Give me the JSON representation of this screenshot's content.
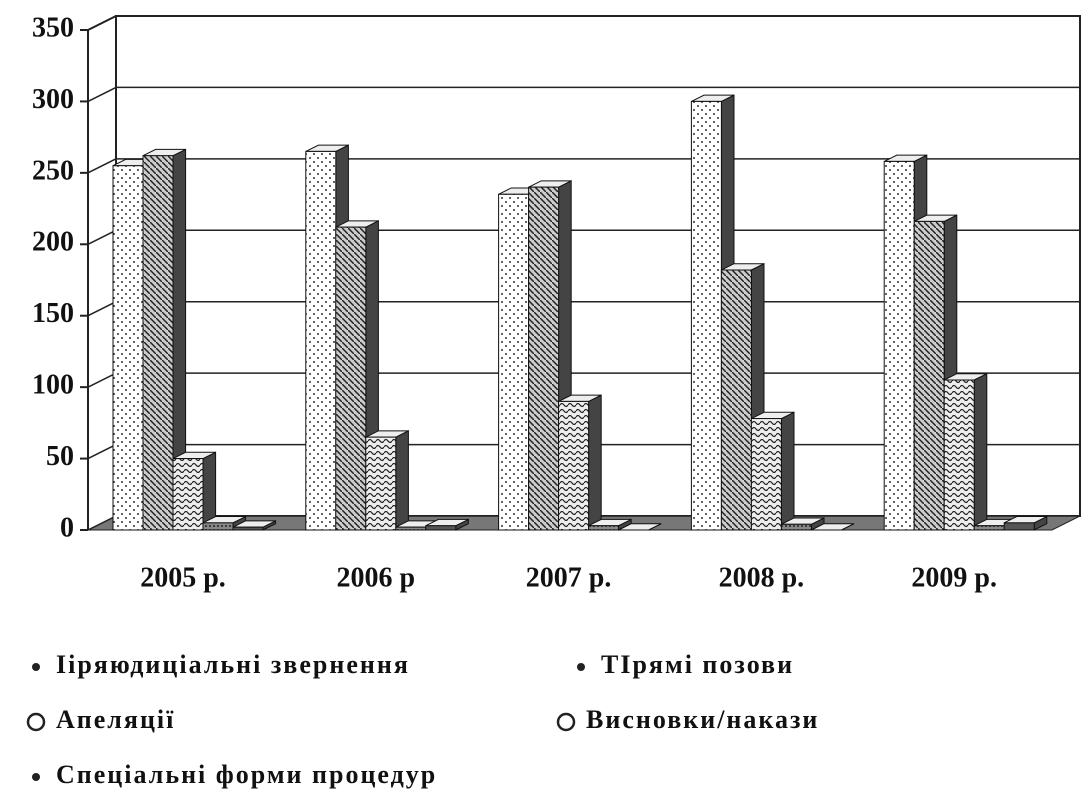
{
  "chart_data": {
    "type": "bar3d",
    "categories": [
      "2005 р.",
      "2006 р",
      "2007 р.",
      "2008 р.",
      "2009 р."
    ],
    "series": [
      {
        "name": "Іiряюдиціальні звернення",
        "color": "#ffffff",
        "values": [
          255,
          265,
          235,
          300,
          258
        ]
      },
      {
        "name": "ТIрямі позови",
        "color": "#bbbbbb",
        "values": [
          262,
          212,
          240,
          182,
          216
        ]
      },
      {
        "name": "Апеляції",
        "color": "#dddddd",
        "values": [
          50,
          65,
          90,
          78,
          105
        ]
      },
      {
        "name": "Висновки/накази",
        "color": "#888888",
        "values": [
          5,
          2,
          3,
          4,
          3
        ]
      },
      {
        "name": "Спеціальні форми процедур",
        "color": "#666666",
        "values": [
          2,
          3,
          0,
          0,
          5
        ]
      }
    ],
    "ylim": [
      0,
      350
    ],
    "yticks": [
      0,
      50,
      100,
      150,
      200,
      250,
      300,
      350
    ],
    "grid": true
  }
}
